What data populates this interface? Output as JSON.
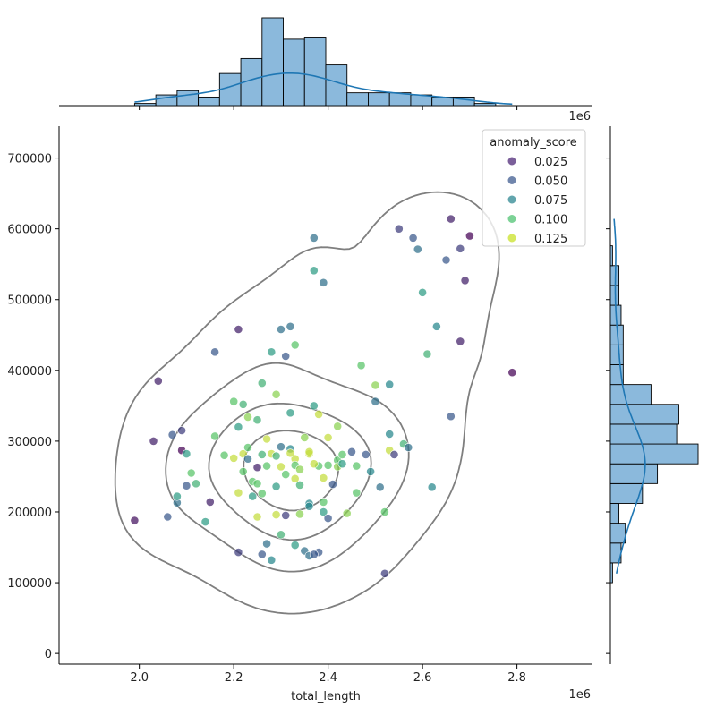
{
  "chart_data": {
    "type": "scatter",
    "subtype": "jointplot",
    "xlabel": "total_length",
    "ylabel": "",
    "x_multiplier_label": "1e6",
    "xlim": [
      1830000,
      2960000
    ],
    "ylim": [
      -15000,
      745000
    ],
    "x_ticks": [
      2000000,
      2200000,
      2400000,
      2600000,
      2800000
    ],
    "x_tick_labels": [
      "2.0",
      "2.2",
      "2.4",
      "2.6",
      "2.8"
    ],
    "y_ticks": [
      0,
      100000,
      200000,
      300000,
      400000,
      500000,
      600000,
      700000
    ],
    "y_tick_labels": [
      "0",
      "100000",
      "200000",
      "300000",
      "400000",
      "500000",
      "600000",
      "700000"
    ],
    "colormap": [
      "#440154",
      "#3b528b",
      "#21918c",
      "#5ec962",
      "#fde725"
    ],
    "legend": {
      "title": "anomaly_score",
      "placement": "top-right",
      "entries": [
        {
          "label": "0.025",
          "value": 0.025,
          "color": "#482173"
        },
        {
          "label": "0.050",
          "value": 0.05,
          "color": "#39568c"
        },
        {
          "label": "0.075",
          "value": 0.075,
          "color": "#26828e"
        },
        {
          "label": "0.100",
          "value": 0.1,
          "color": "#4ac16d"
        },
        {
          "label": "0.125",
          "value": 0.125,
          "color": "#c8e020"
        }
      ]
    },
    "score_range": [
      0.02,
      0.13
    ],
    "points": [
      [
        1990000,
        188000,
        0.025
      ],
      [
        2030000,
        300000,
        0.03
      ],
      [
        2040000,
        385000,
        0.03
      ],
      [
        2060000,
        193000,
        0.05
      ],
      [
        2070000,
        309000,
        0.05
      ],
      [
        2080000,
        213000,
        0.06
      ],
      [
        2090000,
        287000,
        0.02
      ],
      [
        2080000,
        222000,
        0.08
      ],
      [
        2090000,
        315000,
        0.04
      ],
      [
        2100000,
        237000,
        0.05
      ],
      [
        2100000,
        282000,
        0.08
      ],
      [
        2110000,
        255000,
        0.1
      ],
      [
        2120000,
        240000,
        0.09
      ],
      [
        2140000,
        186000,
        0.08
      ],
      [
        2150000,
        214000,
        0.03
      ],
      [
        2160000,
        426000,
        0.05
      ],
      [
        2160000,
        307000,
        0.1
      ],
      [
        2180000,
        280000,
        0.1
      ],
      [
        2200000,
        356000,
        0.1
      ],
      [
        2200000,
        276000,
        0.12
      ],
      [
        2210000,
        320000,
        0.08
      ],
      [
        2210000,
        458000,
        0.03
      ],
      [
        2220000,
        352000,
        0.09
      ],
      [
        2220000,
        282000,
        0.12
      ],
      [
        2210000,
        227000,
        0.12
      ],
      [
        2220000,
        257000,
        0.1
      ],
      [
        2230000,
        334000,
        0.11
      ],
      [
        2230000,
        275000,
        0.06
      ],
      [
        2240000,
        243000,
        0.1
      ],
      [
        2240000,
        222000,
        0.08
      ],
      [
        2250000,
        263000,
        0.03
      ],
      [
        2250000,
        193000,
        0.12
      ],
      [
        2260000,
        382000,
        0.09
      ],
      [
        2260000,
        226000,
        0.1
      ],
      [
        2260000,
        281000,
        0.09
      ],
      [
        2270000,
        155000,
        0.06
      ],
      [
        2270000,
        265000,
        0.1
      ],
      [
        2280000,
        426000,
        0.08
      ],
      [
        2280000,
        282000,
        0.12
      ],
      [
        2290000,
        366000,
        0.11
      ],
      [
        2290000,
        236000,
        0.08
      ],
      [
        2300000,
        292000,
        0.06
      ],
      [
        2300000,
        458000,
        0.06
      ],
      [
        2310000,
        253000,
        0.1
      ],
      [
        2310000,
        420000,
        0.05
      ],
      [
        2320000,
        340000,
        0.08
      ],
      [
        2320000,
        289000,
        0.07
      ],
      [
        2320000,
        462000,
        0.06
      ],
      [
        2330000,
        436000,
        0.1
      ],
      [
        2330000,
        275000,
        0.12
      ],
      [
        2330000,
        266000,
        0.1
      ],
      [
        2340000,
        238000,
        0.09
      ],
      [
        2340000,
        260000,
        0.11
      ],
      [
        2350000,
        145000,
        0.06
      ],
      [
        2360000,
        212000,
        0.07
      ],
      [
        2360000,
        282000,
        0.12
      ],
      [
        2370000,
        587000,
        0.06
      ],
      [
        2370000,
        541000,
        0.08
      ],
      [
        2370000,
        350000,
        0.08
      ],
      [
        2380000,
        338000,
        0.12
      ],
      [
        2380000,
        265000,
        0.1
      ],
      [
        2380000,
        143000,
        0.05
      ],
      [
        2390000,
        524000,
        0.06
      ],
      [
        2390000,
        248000,
        0.12
      ],
      [
        2390000,
        200000,
        0.08
      ],
      [
        2400000,
        305000,
        0.12
      ],
      [
        2400000,
        266000,
        0.1
      ],
      [
        2410000,
        239000,
        0.05
      ],
      [
        2420000,
        321000,
        0.11
      ],
      [
        2420000,
        273000,
        0.1
      ],
      [
        2430000,
        281000,
        0.1
      ],
      [
        2440000,
        198000,
        0.11
      ],
      [
        2450000,
        285000,
        0.05
      ],
      [
        2460000,
        227000,
        0.1
      ],
      [
        2460000,
        265000,
        0.1
      ],
      [
        2470000,
        407000,
        0.1
      ],
      [
        2480000,
        281000,
        0.05
      ],
      [
        2490000,
        257000,
        0.07
      ],
      [
        2500000,
        379000,
        0.11
      ],
      [
        2500000,
        356000,
        0.06
      ],
      [
        2510000,
        235000,
        0.06
      ],
      [
        2520000,
        113000,
        0.04
      ],
      [
        2520000,
        200000,
        0.1
      ],
      [
        2530000,
        287000,
        0.12
      ],
      [
        2530000,
        380000,
        0.07
      ],
      [
        2530000,
        310000,
        0.07
      ],
      [
        2540000,
        281000,
        0.04
      ],
      [
        2550000,
        600000,
        0.04
      ],
      [
        2560000,
        296000,
        0.09
      ],
      [
        2570000,
        291000,
        0.06
      ],
      [
        2580000,
        587000,
        0.05
      ],
      [
        2590000,
        571000,
        0.06
      ],
      [
        2600000,
        510000,
        0.08
      ],
      [
        2610000,
        423000,
        0.09
      ],
      [
        2620000,
        235000,
        0.07
      ],
      [
        2630000,
        462000,
        0.07
      ],
      [
        2650000,
        556000,
        0.05
      ],
      [
        2660000,
        335000,
        0.05
      ],
      [
        2660000,
        614000,
        0.03
      ],
      [
        2680000,
        572000,
        0.04
      ],
      [
        2680000,
        441000,
        0.03
      ],
      [
        2690000,
        527000,
        0.03
      ],
      [
        2700000,
        590000,
        0.02
      ],
      [
        2790000,
        397000,
        0.02
      ],
      [
        2260000,
        140000,
        0.05
      ],
      [
        2280000,
        132000,
        0.07
      ],
      [
        2330000,
        153000,
        0.08
      ],
      [
        2360000,
        138000,
        0.06
      ],
      [
        2370000,
        140000,
        0.05
      ],
      [
        2290000,
        196000,
        0.12
      ],
      [
        2340000,
        197000,
        0.11
      ],
      [
        2300000,
        168000,
        0.09
      ],
      [
        2360000,
        285000,
        0.12
      ],
      [
        2310000,
        195000,
        0.04
      ],
      [
        2250000,
        240000,
        0.1
      ],
      [
        2400000,
        191000,
        0.05
      ],
      [
        2330000,
        247000,
        0.12
      ],
      [
        2270000,
        303000,
        0.12
      ],
      [
        2360000,
        208000,
        0.07
      ],
      [
        2420000,
        264000,
        0.11
      ],
      [
        2290000,
        279000,
        0.09
      ],
      [
        2210000,
        143000,
        0.04
      ],
      [
        2350000,
        305000,
        0.11
      ],
      [
        2370000,
        268000,
        0.12
      ],
      [
        2430000,
        268000,
        0.08
      ],
      [
        2230000,
        291000,
        0.1
      ],
      [
        2250000,
        330000,
        0.09
      ],
      [
        2390000,
        214000,
        0.1
      ],
      [
        2320000,
        283000,
        0.12
      ],
      [
        2300000,
        264000,
        0.12
      ]
    ],
    "x_hist": {
      "bins": [
        1990000,
        2035000,
        2080000,
        2125000,
        2170000,
        2215000,
        2260000,
        2305000,
        2350000,
        2395000,
        2440000,
        2485000,
        2530000,
        2575000,
        2620000,
        2665000,
        2710000,
        2755000,
        2800000
      ],
      "counts": [
        1,
        5,
        7,
        4,
        15,
        22,
        41,
        31,
        32,
        19,
        6,
        6,
        6,
        5,
        4,
        4,
        1,
        0
      ]
    },
    "y_hist": {
      "bins": [
        100000,
        128000,
        156000,
        184000,
        212000,
        240000,
        268000,
        296000,
        324000,
        352000,
        380000,
        408000,
        436000,
        464000,
        492000,
        520000,
        548000,
        576000,
        604000
      ],
      "counts": [
        1,
        5,
        7,
        4,
        15,
        22,
        41,
        31,
        32,
        19,
        6,
        6,
        6,
        5,
        4,
        4,
        1,
        0
      ]
    }
  }
}
